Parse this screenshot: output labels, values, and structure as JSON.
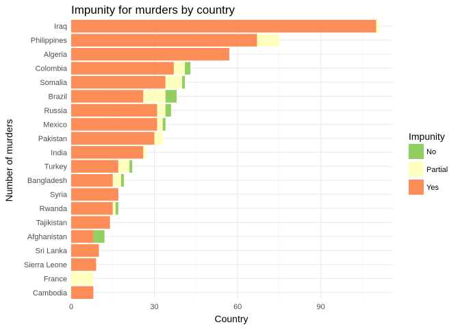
{
  "chart_data": {
    "type": "bar",
    "orientation": "horizontal",
    "stacked": true,
    "title": "Impunity for murders by country",
    "xlabel": "Country",
    "ylabel": "Number of murders",
    "xlim": [
      0,
      116
    ],
    "x_ticks": [
      0,
      30,
      60,
      90
    ],
    "grid": true,
    "legend_position": "right",
    "legend_title": "Impunity",
    "categories": [
      "Iraq",
      "Philippines",
      "Algeria",
      "Colombia",
      "Somalia",
      "Brazil",
      "Russia",
      "Mexico",
      "Pakistan",
      "India",
      "Turkey",
      "Bangladesh",
      "Syria",
      "Rwanda",
      "Tajikistan",
      "Afghanistan",
      "Sri Lanka",
      "Sierra Leone",
      "France",
      "Cambodia"
    ],
    "series": [
      {
        "name": "Yes",
        "color": "#FC8D59",
        "values": [
          110,
          67,
          57,
          37,
          34,
          26,
          31,
          31,
          30,
          26,
          17,
          15,
          17,
          15,
          14,
          8,
          10,
          9,
          0,
          8
        ]
      },
      {
        "name": "Partial",
        "color": "#FFFFBF",
        "values": [
          1,
          8,
          0,
          4,
          6,
          8,
          3,
          2,
          3,
          1,
          4,
          3,
          0,
          1,
          0,
          0,
          0,
          0,
          8,
          0
        ]
      },
      {
        "name": "No",
        "color": "#91CF60",
        "values": [
          0,
          0,
          0,
          2,
          1,
          4,
          2,
          1,
          0,
          0,
          1,
          1,
          0,
          1,
          0,
          4,
          0,
          0,
          0,
          0
        ]
      }
    ],
    "legend_order": [
      "No",
      "Partial",
      "Yes"
    ]
  }
}
